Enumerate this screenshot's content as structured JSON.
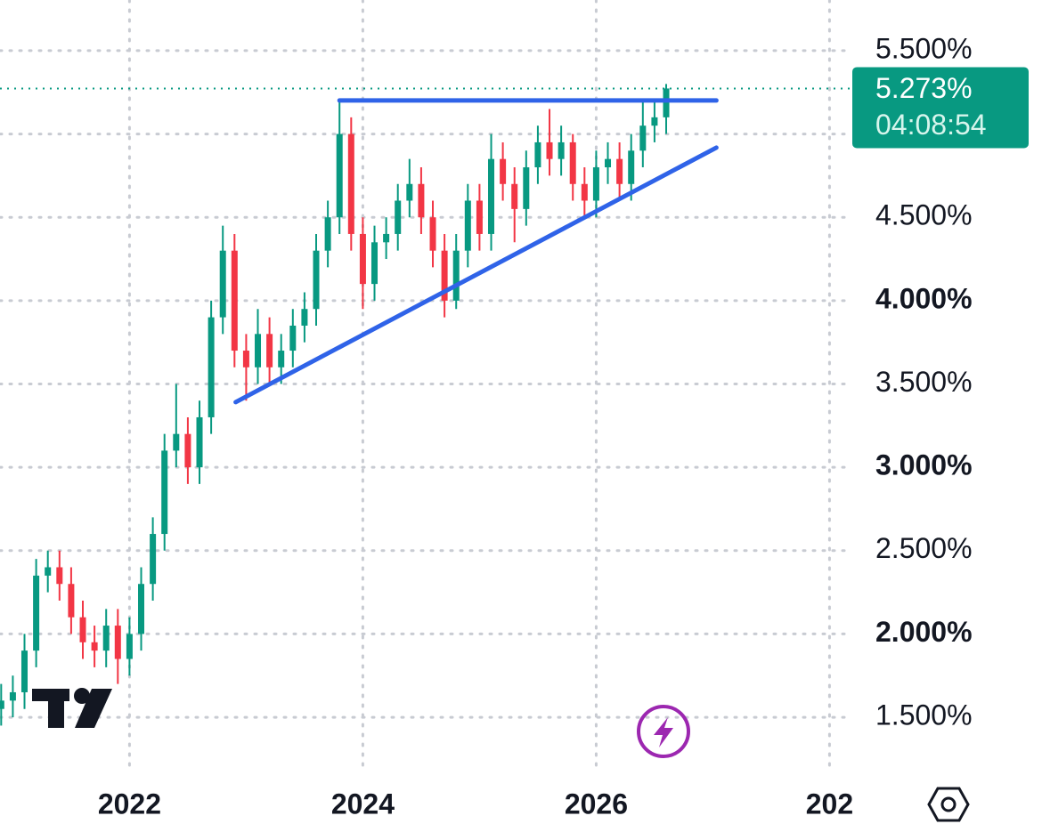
{
  "chart_data": {
    "type": "candlestick",
    "x": [
      2020.9,
      2021.0,
      2021.1,
      2021.2,
      2021.3,
      2021.4,
      2021.5,
      2021.6,
      2021.7,
      2021.8,
      2021.9,
      2022.0,
      2022.1,
      2022.2,
      2022.3,
      2022.4,
      2022.5,
      2022.6,
      2022.7,
      2022.8,
      2022.9,
      2023.0,
      2023.1,
      2023.2,
      2023.3,
      2023.4,
      2023.5,
      2023.6,
      2023.7,
      2023.8,
      2023.9,
      2024.0,
      2024.1,
      2024.2,
      2024.3,
      2024.4,
      2024.5,
      2024.6,
      2024.7,
      2024.8,
      2024.9,
      2025.0,
      2025.1,
      2025.2,
      2025.3,
      2025.4,
      2025.5,
      2025.6,
      2025.7,
      2025.8,
      2025.9,
      2026.0,
      2026.1,
      2026.2,
      2026.3,
      2026.4,
      2026.5,
      2026.6
    ],
    "open": [
      1.55,
      1.6,
      1.65,
      1.9,
      2.35,
      2.4,
      2.3,
      2.1,
      1.95,
      1.9,
      2.05,
      1.85,
      2.0,
      2.3,
      2.6,
      3.1,
      3.2,
      3.0,
      3.3,
      3.9,
      4.3,
      3.7,
      3.6,
      3.8,
      3.6,
      3.7,
      3.85,
      3.95,
      4.3,
      4.5,
      5.0,
      4.4,
      4.1,
      4.35,
      4.4,
      4.6,
      4.7,
      4.5,
      4.3,
      4.0,
      4.3,
      4.6,
      4.4,
      4.85,
      4.7,
      4.55,
      4.8,
      4.95,
      4.85,
      4.95,
      4.7,
      4.6,
      4.8,
      4.85,
      4.7,
      4.9,
      5.05,
      5.1
    ],
    "high": [
      1.7,
      1.75,
      2.0,
      2.45,
      2.5,
      2.5,
      2.4,
      2.2,
      2.05,
      2.15,
      2.15,
      2.1,
      2.4,
      2.7,
      3.2,
      3.5,
      3.3,
      3.4,
      4.0,
      4.45,
      4.4,
      3.8,
      3.95,
      3.9,
      3.8,
      3.95,
      4.05,
      4.4,
      4.6,
      5.2,
      5.1,
      4.5,
      4.45,
      4.5,
      4.7,
      4.85,
      4.8,
      4.6,
      4.4,
      4.4,
      4.7,
      4.7,
      5.0,
      4.95,
      4.8,
      4.9,
      5.05,
      5.15,
      5.05,
      5.0,
      4.8,
      4.9,
      4.95,
      4.95,
      5.0,
      5.2,
      5.2,
      5.3
    ],
    "low": [
      1.45,
      1.5,
      1.55,
      1.8,
      2.25,
      2.2,
      2.0,
      1.85,
      1.8,
      1.8,
      1.7,
      1.75,
      1.9,
      2.2,
      2.5,
      3.0,
      2.9,
      2.9,
      3.2,
      3.8,
      3.6,
      3.4,
      3.5,
      3.5,
      3.5,
      3.6,
      3.75,
      3.85,
      4.2,
      4.4,
      4.3,
      3.95,
      4.0,
      4.25,
      4.3,
      4.5,
      4.4,
      4.2,
      3.9,
      3.95,
      4.2,
      4.3,
      4.3,
      4.6,
      4.35,
      4.45,
      4.7,
      4.75,
      4.75,
      4.6,
      4.5,
      4.5,
      4.7,
      4.6,
      4.6,
      4.8,
      4.95,
      5.0
    ],
    "close": [
      1.6,
      1.65,
      1.9,
      2.35,
      2.4,
      2.3,
      2.1,
      1.95,
      1.9,
      2.05,
      1.85,
      2.0,
      2.3,
      2.6,
      3.1,
      3.2,
      3.0,
      3.3,
      3.9,
      4.3,
      3.7,
      3.6,
      3.8,
      3.6,
      3.7,
      3.85,
      3.95,
      4.3,
      4.5,
      5.0,
      4.4,
      4.1,
      4.35,
      4.4,
      4.6,
      4.7,
      4.5,
      4.3,
      4.0,
      4.3,
      4.6,
      4.4,
      4.85,
      4.7,
      4.55,
      4.8,
      4.95,
      4.85,
      4.95,
      4.7,
      4.6,
      4.8,
      4.85,
      4.7,
      4.9,
      5.05,
      5.1,
      5.273
    ],
    "up_color": "#089981",
    "down_color": "#f23645",
    "xlim": [
      2020.89,
      2028.18
    ],
    "xticks": [
      2022,
      2024,
      2026,
      {
        "value": 2028,
        "label": "202"
      }
    ],
    "ylim": [
      1.212,
      5.804
    ],
    "yticks": [
      {
        "value": 5.5,
        "label": "5.500%"
      },
      {
        "value": 5.0,
        "label": null
      },
      {
        "value": 4.5,
        "label": "4.500%"
      },
      {
        "value": 4.0,
        "label": "4.000%"
      },
      {
        "value": 3.5,
        "label": "3.500%"
      },
      {
        "value": 3.0,
        "label": "3.000%"
      },
      {
        "value": 2.5,
        "label": "2.500%"
      },
      {
        "value": 2.0,
        "label": "2.000%"
      },
      {
        "value": 1.5,
        "label": "1.500%"
      }
    ],
    "grid": true,
    "last_price": {
      "value": 5.273,
      "label": "5.273%",
      "color": "#089981"
    },
    "countdown": "04:08:54",
    "trendlines": [
      {
        "x": [
          2023.8,
          2027.03
        ],
        "y": [
          5.201,
          5.201
        ],
        "color": "#2f63e8"
      },
      {
        "x": [
          2022.91,
          2027.03
        ],
        "y": [
          3.391,
          4.918
        ],
        "color": "#2f63e8"
      }
    ]
  }
}
